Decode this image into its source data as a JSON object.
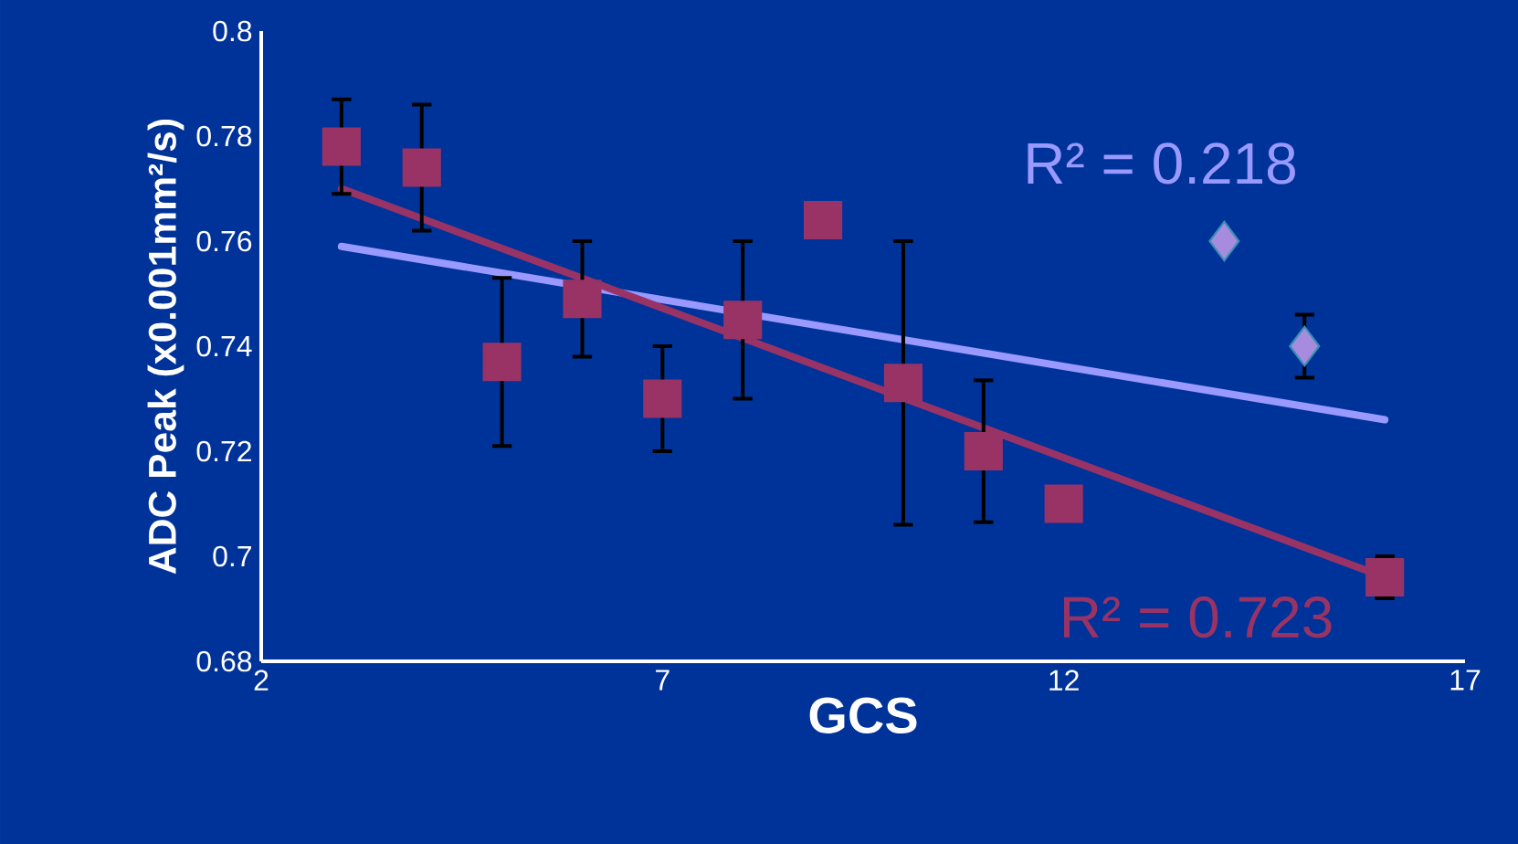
{
  "chart_data": {
    "type": "scatter",
    "xlabel": "GCS",
    "ylabel": "ADC Peak (x0.001mm²/s)",
    "xlim": [
      2,
      17
    ],
    "xticks": [
      2,
      7,
      12,
      17
    ],
    "ylim": [
      0.68,
      0.8
    ],
    "yticks": [
      0.68,
      0.7,
      0.72,
      0.74,
      0.76,
      0.78,
      0.8
    ],
    "grid": false,
    "series": [
      {
        "marker": "diamond",
        "color": "#a78bdf",
        "x": [
          14,
          15
        ],
        "values": [
          0.76,
          0.74
        ],
        "errors": [
          null,
          0.006
        ]
      },
      {
        "type": "line",
        "marker": "none",
        "color": "#9999ff",
        "x": [
          3,
          16
        ],
        "values": [
          0.759,
          0.726
        ]
      },
      {
        "type": "line",
        "marker": "none",
        "color": "#993366",
        "x": [
          3,
          16
        ],
        "values": [
          0.77,
          0.696
        ]
      },
      {
        "marker": "square",
        "color": "#993366",
        "x": [
          3,
          4,
          5,
          6,
          7,
          8,
          9,
          10,
          11,
          12,
          16
        ],
        "values": [
          0.778,
          0.774,
          0.737,
          0.749,
          0.73,
          0.745,
          0.764,
          0.733,
          0.72,
          0.71,
          0.696
        ],
        "errors": [
          0.009,
          0.012,
          0.016,
          0.011,
          0.01,
          0.015,
          null,
          0.027,
          0.0135,
          null,
          0.004
        ]
      }
    ],
    "annotations": [
      "R² = 0.218",
      "R² = 0.723"
    ]
  }
}
